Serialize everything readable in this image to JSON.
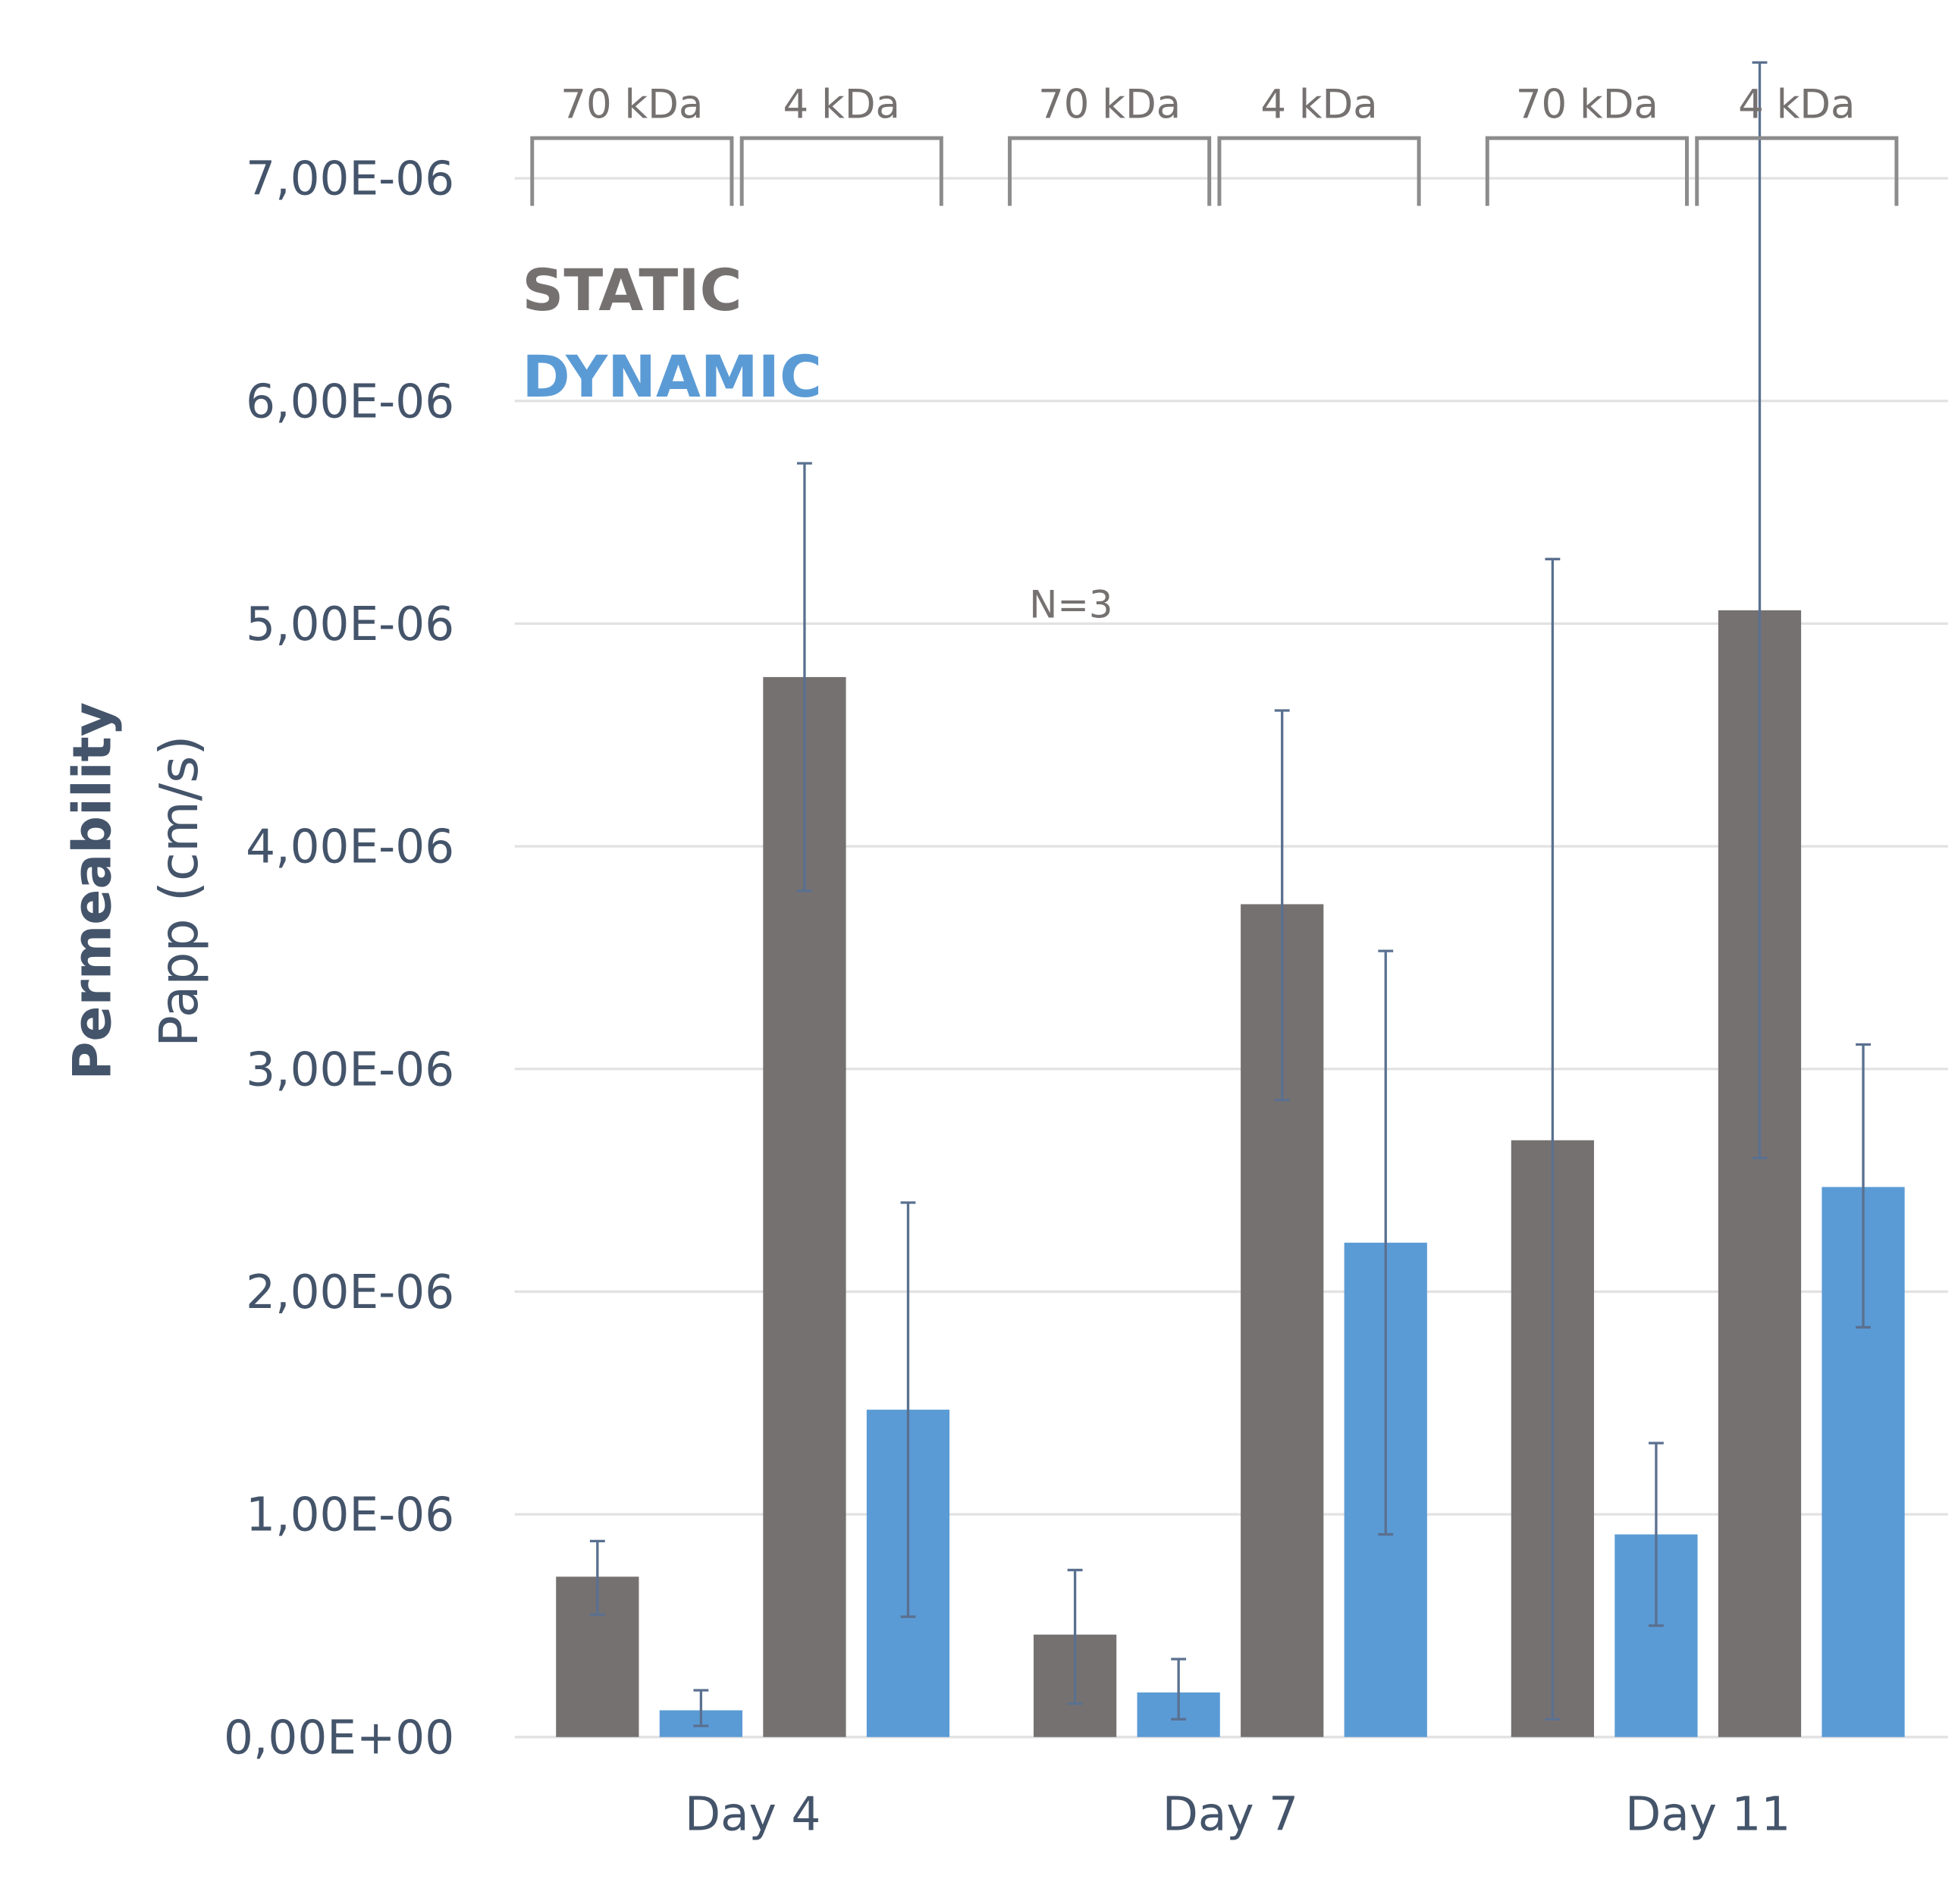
{
  "chart_data": {
    "type": "bar",
    "title": "",
    "ylabel": "Permeability",
    "ylabel2": "Papp (cm/s)",
    "xlabel": "",
    "ylim": [
      0,
      7e-06
    ],
    "yticks": [
      "0,00E+00",
      "1,00E-06",
      "2,00E-06",
      "3,00E-06",
      "4,00E-06",
      "5,00E-06",
      "6,00E-06",
      "7,00E-06"
    ],
    "categories": [
      "Day 4",
      "Day 7",
      "Day 11"
    ],
    "subgroups": [
      "70 kDa",
      "4 kDa"
    ],
    "legend": [
      {
        "name": "STATIC",
        "color": "#767171"
      },
      {
        "name": "DYNAMIC",
        "color": "#5b9bd5"
      }
    ],
    "annotation": "N=3",
    "grid": true,
    "series": [
      {
        "name": "STATIC 70 kDa",
        "color": "#767171",
        "values": [
          7.2e-07,
          4.6e-07,
          2.68e-06
        ],
        "err_high": [
          8.8e-07,
          7.5e-07,
          5.29e-06
        ],
        "err_low": [
          5.5e-07,
          1.5e-07,
          8e-08
        ]
      },
      {
        "name": "DYNAMIC 70 kDa",
        "color": "#5b9bd5",
        "values": [
          1.2e-07,
          2e-07,
          9.1e-07
        ],
        "err_high": [
          2.1e-07,
          3.5e-07,
          1.32e-06
        ],
        "err_low": [
          5e-08,
          8e-08,
          5e-07
        ]
      },
      {
        "name": "STATIC 4 kDa",
        "color": "#767171",
        "values": [
          4.76e-06,
          3.74e-06,
          5.06e-06
        ],
        "err_high": [
          5.72e-06,
          4.61e-06,
          7.52e-06
        ],
        "err_low": [
          3.8e-06,
          2.86e-06,
          2.6e-06
        ]
      },
      {
        "name": "DYNAMIC 4 kDa",
        "color": "#5b9bd5",
        "values": [
          1.47e-06,
          2.22e-06,
          2.47e-06
        ],
        "err_high": [
          2.4e-06,
          3.53e-06,
          3.11e-06
        ],
        "err_low": [
          5.4e-07,
          9.1e-07,
          1.84e-06
        ]
      }
    ]
  }
}
